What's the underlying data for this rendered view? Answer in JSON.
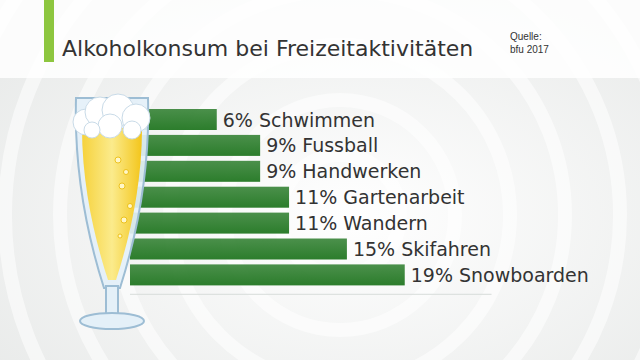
{
  "chart_data": {
    "type": "bar",
    "orientation": "horizontal",
    "title": "Alkoholkonsum bei Freizeitaktivitäten",
    "annotations": [
      "Quelle:",
      "bfu 2017"
    ],
    "categories": [
      "Schwimmen",
      "Fussball",
      "Handwerken",
      "Gartenarbeit",
      "Wandern",
      "Skifahren",
      "Snowboarden"
    ],
    "values": [
      6,
      9,
      9,
      11,
      11,
      15,
      19
    ],
    "value_labels": [
      "6%",
      "9%",
      "9%",
      "11%",
      "11%",
      "15%",
      "19%"
    ],
    "data_labels": true,
    "color": "#2c7d2c",
    "xlim": [
      0,
      25
    ],
    "xticks": [],
    "tick_labels": false,
    "grid": false
  }
}
